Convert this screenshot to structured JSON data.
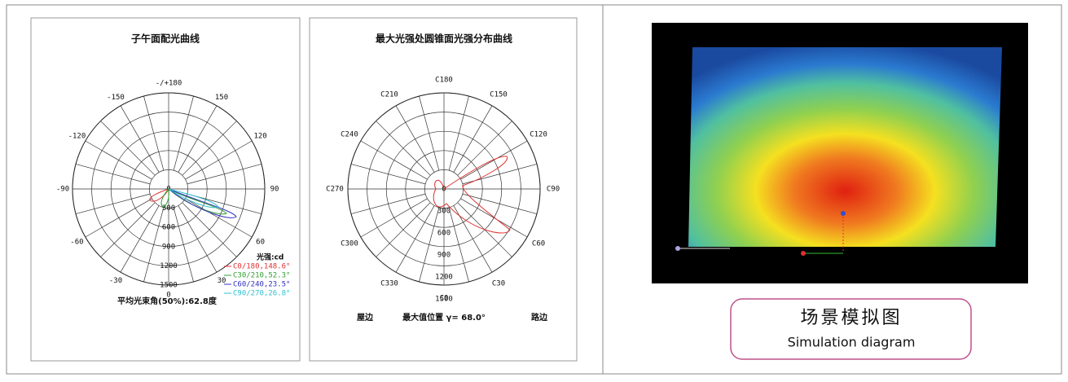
{
  "charts": [
    {
      "title": "子午面配光曲线",
      "angle_labels": [
        "-/+180",
        "150",
        "120",
        "90",
        "60",
        "30",
        "0",
        "-30",
        "-60",
        "-90",
        "-120",
        "-150"
      ],
      "radial_labels": [
        "0",
        "300",
        "600",
        "900",
        "1200",
        "1500"
      ],
      "legend_title": "光强:cd",
      "legend": [
        "C0/180,148.6°",
        "C30/210,52.3°",
        "C60/240,23.5°",
        "C90/270,26.8°"
      ],
      "footer": "平均光束角(50%):62.8度"
    },
    {
      "title": "最大光强处圆锥面光强分布曲线",
      "angle_labels": [
        "C180",
        "C150",
        "C120",
        "C90",
        "C60",
        "C30",
        "C0",
        "C330",
        "C300",
        "C270",
        "C240",
        "C210"
      ],
      "radial_labels": [
        "0",
        "300",
        "600",
        "900",
        "1200",
        "1500"
      ],
      "footer_left": "屋边",
      "footer_center": "最大值位置 γ= 68.0°",
      "footer_right": "路边"
    }
  ],
  "image": {
    "caption_cn": "场景模拟图",
    "caption_en": "Simulation diagram"
  }
}
